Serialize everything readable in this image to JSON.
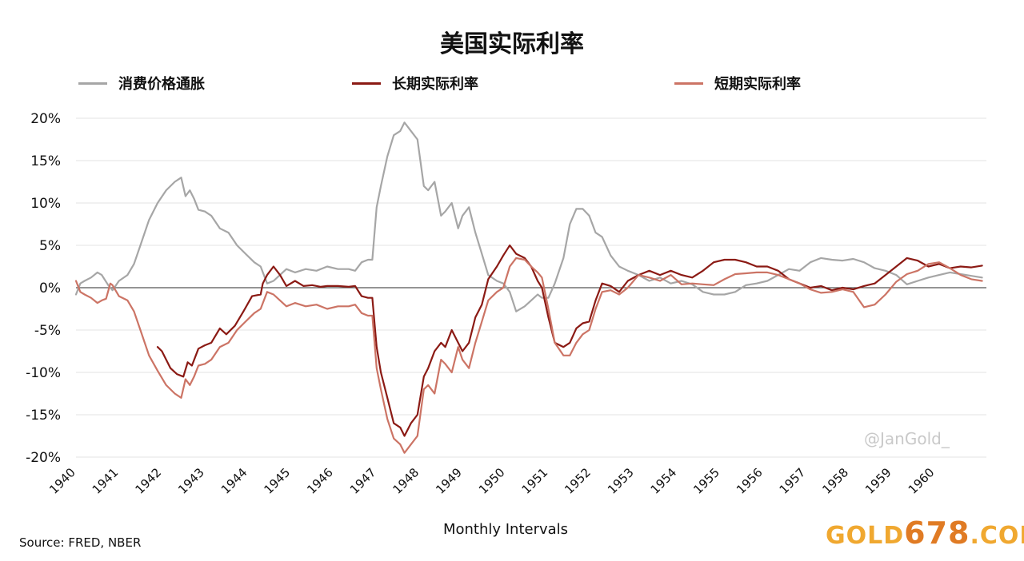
{
  "chart_data": {
    "type": "line",
    "title": "美国实际利率",
    "xlabel": "Monthly Intervals",
    "ylabel": "",
    "ylim": [
      -20,
      20
    ],
    "yticks": [
      -20,
      -15,
      -10,
      -5,
      0,
      5,
      10,
      15,
      20
    ],
    "ytick_labels": [
      "-20%",
      "-15%",
      "-10%",
      "-5%",
      "0%",
      "5%",
      "10%",
      "15%",
      "20%"
    ],
    "xlim": [
      1940,
      1961.2
    ],
    "xticks": [
      1940,
      1941,
      1942,
      1943,
      1944,
      1945,
      1946,
      1947,
      1948,
      1949,
      1950,
      1951,
      1952,
      1953,
      1954,
      1955,
      1956,
      1957,
      1958,
      1959,
      1960
    ],
    "xtick_labels": [
      "1940",
      "1941",
      "1942",
      "1943",
      "1944",
      "1945",
      "1946",
      "1947",
      "1948",
      "1949",
      "1950",
      "1951",
      "1952",
      "1953",
      "1954",
      "1955",
      "1956",
      "1957",
      "1958",
      "1959",
      "1960"
    ],
    "grid": true,
    "legend_position": "top",
    "series": [
      {
        "name": "消费价格通胀",
        "color": "#a6a6a6",
        "x": [
          1940.0,
          1940.1,
          1940.2,
          1940.35,
          1940.5,
          1940.6,
          1940.75,
          1940.85,
          1941.0,
          1941.2,
          1941.35,
          1941.5,
          1941.7,
          1941.9,
          1942.1,
          1942.3,
          1942.45,
          1942.55,
          1942.65,
          1942.75,
          1942.85,
          1943.0,
          1943.15,
          1943.35,
          1943.55,
          1943.75,
          1943.95,
          1944.15,
          1944.3,
          1944.45,
          1944.6,
          1944.75,
          1944.9,
          1945.1,
          1945.35,
          1945.6,
          1945.85,
          1946.1,
          1946.35,
          1946.5,
          1946.65,
          1946.8,
          1946.9,
          1947.0,
          1947.1,
          1947.25,
          1947.4,
          1947.55,
          1947.65,
          1947.8,
          1947.95,
          1948.1,
          1948.2,
          1948.35,
          1948.5,
          1948.6,
          1948.75,
          1948.9,
          1949.0,
          1949.15,
          1949.3,
          1949.45,
          1949.6,
          1949.8,
          1949.95,
          1950.1,
          1950.25,
          1950.45,
          1950.6,
          1950.75,
          1950.85,
          1951.0,
          1951.15,
          1951.35,
          1951.5,
          1951.65,
          1951.8,
          1951.95,
          1952.1,
          1952.25,
          1952.45,
          1952.65,
          1952.85,
          1953.1,
          1953.35,
          1953.6,
          1953.85,
          1954.1,
          1954.35,
          1954.6,
          1954.85,
          1955.1,
          1955.35,
          1955.6,
          1955.85,
          1956.1,
          1956.35,
          1956.6,
          1956.85,
          1957.1,
          1957.35,
          1957.6,
          1957.85,
          1958.1,
          1958.35,
          1958.6,
          1958.85,
          1959.1,
          1959.35,
          1959.6,
          1959.85,
          1960.1,
          1960.35,
          1960.6,
          1960.85,
          1961.1
        ],
        "values": [
          -0.8,
          0.5,
          0.8,
          1.2,
          1.8,
          1.5,
          0.3,
          -0.3,
          0.8,
          1.5,
          2.8,
          5.0,
          8.0,
          10.0,
          11.5,
          12.5,
          13.0,
          10.8,
          11.5,
          10.5,
          9.2,
          9.0,
          8.5,
          7.0,
          6.5,
          5.0,
          4.0,
          3.0,
          2.5,
          0.5,
          0.8,
          1.5,
          2.2,
          1.8,
          2.2,
          2.0,
          2.5,
          2.2,
          2.2,
          2.0,
          3.0,
          3.3,
          3.3,
          9.5,
          12.0,
          15.5,
          18.0,
          18.5,
          19.5,
          18.5,
          17.5,
          12.0,
          11.5,
          12.5,
          8.5,
          9.0,
          10.0,
          7.0,
          8.5,
          9.5,
          6.5,
          4.0,
          1.5,
          0.8,
          0.5,
          -0.5,
          -2.8,
          -2.2,
          -1.5,
          -0.8,
          -1.2,
          -1.2,
          0.5,
          3.5,
          7.5,
          9.3,
          9.3,
          8.5,
          6.5,
          6.0,
          3.8,
          2.5,
          2.0,
          1.5,
          0.8,
          1.2,
          0.5,
          0.8,
          0.4,
          -0.5,
          -0.8,
          -0.8,
          -0.5,
          0.3,
          0.5,
          0.8,
          1.5,
          2.2,
          2.0,
          3.0,
          3.5,
          3.3,
          3.2,
          3.4,
          3.0,
          2.3,
          2.0,
          1.5,
          0.4,
          0.8,
          1.2,
          1.5,
          1.8,
          1.6,
          1.4,
          1.2
        ]
      },
      {
        "name": "长期实际利率",
        "color": "#8b1a14",
        "x": [
          1941.9,
          1942.0,
          1942.2,
          1942.35,
          1942.5,
          1942.6,
          1942.7,
          1942.85,
          1943.0,
          1943.15,
          1943.35,
          1943.5,
          1943.7,
          1943.9,
          1944.1,
          1944.3,
          1944.35,
          1944.45,
          1944.6,
          1944.75,
          1944.9,
          1945.1,
          1945.3,
          1945.5,
          1945.7,
          1945.85,
          1946.1,
          1946.35,
          1946.5,
          1946.65,
          1946.8,
          1946.9,
          1947.0,
          1947.1,
          1947.25,
          1947.4,
          1947.55,
          1947.65,
          1947.8,
          1947.95,
          1948.1,
          1948.2,
          1948.35,
          1948.5,
          1948.6,
          1948.75,
          1948.9,
          1949.0,
          1949.15,
          1949.3,
          1949.45,
          1949.6,
          1949.8,
          1949.95,
          1950.1,
          1950.25,
          1950.45,
          1950.6,
          1950.75,
          1950.85,
          1951.0,
          1951.15,
          1951.35,
          1951.5,
          1951.65,
          1951.8,
          1951.95,
          1952.1,
          1952.25,
          1952.45,
          1952.65,
          1952.85,
          1953.1,
          1953.35,
          1953.6,
          1953.85,
          1954.1,
          1954.35,
          1954.6,
          1954.85,
          1955.1,
          1955.35,
          1955.6,
          1955.85,
          1956.1,
          1956.35,
          1956.6,
          1956.85,
          1957.1,
          1957.35,
          1957.6,
          1957.85,
          1958.1,
          1958.35,
          1958.6,
          1958.85,
          1959.1,
          1959.35,
          1959.6,
          1959.85,
          1960.1,
          1960.35,
          1960.6,
          1960.85,
          1961.1
        ],
        "values": [
          -7.0,
          -7.5,
          -9.5,
          -10.2,
          -10.5,
          -8.8,
          -9.2,
          -7.2,
          -6.8,
          -6.5,
          -4.8,
          -5.5,
          -4.5,
          -2.8,
          -1.0,
          -0.8,
          0.5,
          1.5,
          2.5,
          1.5,
          0.2,
          0.8,
          0.2,
          0.3,
          0.1,
          0.2,
          0.2,
          0.1,
          0.2,
          -1.0,
          -1.2,
          -1.2,
          -7.0,
          -10.0,
          -13.0,
          -16.0,
          -16.5,
          -17.5,
          -16.0,
          -15.0,
          -10.5,
          -9.5,
          -7.5,
          -6.5,
          -7.0,
          -5.0,
          -6.5,
          -7.5,
          -6.5,
          -3.5,
          -2.0,
          1.0,
          2.5,
          3.8,
          5.0,
          4.0,
          3.5,
          2.5,
          0.8,
          0.0,
          -3.5,
          -6.5,
          -7.0,
          -6.5,
          -4.8,
          -4.2,
          -4.0,
          -1.5,
          0.5,
          0.2,
          -0.5,
          0.8,
          1.5,
          2.0,
          1.5,
          2.0,
          1.5,
          1.2,
          2.0,
          3.0,
          3.3,
          3.3,
          3.0,
          2.5,
          2.5,
          2.0,
          1.0,
          0.5,
          0.0,
          0.2,
          -0.3,
          0.0,
          -0.2,
          0.2,
          0.5,
          1.5,
          2.5,
          3.5,
          3.2,
          2.5,
          2.8,
          2.3,
          2.5,
          2.4,
          2.6
        ],
        "gaps_after_index": []
      },
      {
        "name": "短期实际利率",
        "color": "#cc7465",
        "x": [
          1940.0,
          1940.1,
          1940.2,
          1940.35,
          1940.5,
          1940.6,
          1940.7,
          1940.8,
          1940.85,
          1941.0,
          1941.2,
          1941.35,
          1941.5,
          1941.7,
          1941.9,
          1942.1,
          1942.3,
          1942.45,
          1942.55,
          1942.65,
          1942.75,
          1942.85,
          1943.0,
          1943.15,
          1943.35,
          1943.55,
          1943.75,
          1943.95,
          1944.15,
          1944.3,
          1944.45,
          1944.6,
          1944.75,
          1944.9,
          1945.1,
          1945.35,
          1945.6,
          1945.85,
          1946.1,
          1946.35,
          1946.5,
          1946.65,
          1946.8,
          1946.9,
          1947.0,
          1947.1,
          1947.25,
          1947.4,
          1947.55,
          1947.65,
          1947.8,
          1947.95,
          1948.1,
          1948.2,
          1948.35,
          1948.5,
          1948.6,
          1948.75,
          1948.9,
          1949.0,
          1949.15,
          1949.3,
          1949.45,
          1949.6,
          1949.8,
          1949.95,
          1950.1,
          1950.25,
          1950.45,
          1950.6,
          1950.75,
          1950.85,
          1951.0,
          1951.15,
          1951.35,
          1951.5,
          1951.65,
          1951.8,
          1951.95,
          1952.1,
          1952.25,
          1952.45,
          1952.65,
          1952.85,
          1953.1,
          1953.35,
          1953.6,
          1953.85,
          1954.1,
          1954.35,
          1954.6,
          1954.85,
          1955.1,
          1955.35,
          1955.6,
          1955.85,
          1956.1,
          1956.35,
          1956.6,
          1956.85,
          1957.1,
          1957.35,
          1957.6,
          1957.85,
          1958.1,
          1958.35,
          1958.6,
          1958.85,
          1959.1,
          1959.35,
          1959.6,
          1959.85,
          1960.1,
          1960.35,
          1960.6,
          1960.85,
          1961.1
        ],
        "values": [
          0.8,
          -0.5,
          -0.8,
          -1.2,
          -1.8,
          -1.5,
          -1.3,
          0.5,
          0.3,
          -1.0,
          -1.5,
          -2.8,
          -5.0,
          -8.0,
          -9.8,
          -11.5,
          -12.5,
          -13.0,
          -10.8,
          -11.5,
          -10.5,
          -9.2,
          -9.0,
          -8.5,
          -7.0,
          -6.5,
          -5.0,
          -4.0,
          -3.0,
          -2.5,
          -0.5,
          -0.8,
          -1.5,
          -2.2,
          -1.8,
          -2.2,
          -2.0,
          -2.5,
          -2.2,
          -2.2,
          -2.0,
          -3.0,
          -3.3,
          -3.3,
          -9.5,
          -12.0,
          -15.5,
          -17.8,
          -18.5,
          -19.5,
          -18.5,
          -17.5,
          -12.0,
          -11.5,
          -12.5,
          -8.5,
          -9.0,
          -10.0,
          -7.0,
          -8.5,
          -9.5,
          -6.5,
          -4.0,
          -1.5,
          -0.5,
          0.0,
          2.5,
          3.5,
          3.3,
          2.5,
          1.8,
          1.2,
          -2.5,
          -6.5,
          -8.0,
          -8.0,
          -6.5,
          -5.5,
          -5.0,
          -2.5,
          -0.5,
          -0.3,
          -0.8,
          0.0,
          1.5,
          1.2,
          0.8,
          1.5,
          0.4,
          0.5,
          0.4,
          0.3,
          1.0,
          1.6,
          1.7,
          1.8,
          1.8,
          1.5,
          1.0,
          0.5,
          -0.2,
          -0.6,
          -0.5,
          -0.2,
          -0.5,
          -2.3,
          -2.0,
          -0.8,
          0.7,
          1.6,
          2.0,
          2.8,
          3.0,
          2.3,
          1.5,
          1.0,
          0.8
        ]
      }
    ]
  },
  "legend": {
    "items": [
      {
        "label": "消费价格通胀",
        "color": "#a6a6a6"
      },
      {
        "label": "长期实际利率",
        "color": "#8b1a14"
      },
      {
        "label": "短期实际利率",
        "color": "#cc7465"
      }
    ]
  },
  "footer": {
    "source": "Source: FRED, NBER"
  },
  "watermark": {
    "handle": "@JanGold_",
    "site_prefix": "GOLD",
    "site_number": "678",
    "site_suffix": ".COM"
  }
}
